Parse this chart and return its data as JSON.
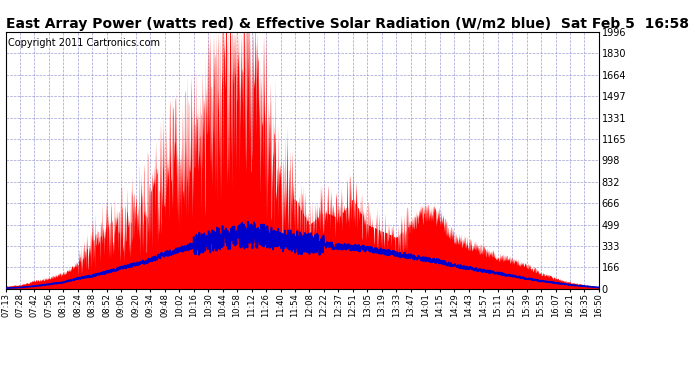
{
  "title": "East Array Power (watts red) & Effective Solar Radiation (W/m2 blue)  Sat Feb 5  16:58",
  "copyright": "Copyright 2011 Cartronics.com",
  "ylim": [
    0.0,
    1996.4
  ],
  "yticks": [
    0.0,
    166.4,
    332.7,
    499.1,
    665.5,
    831.8,
    998.2,
    1164.6,
    1330.9,
    1497.3,
    1663.7,
    1830.0,
    1996.4
  ],
  "background_color": "#ffffff",
  "grid_color": "#aaaaff",
  "fill_color": "#ff0000",
  "line_color": "#0000cc",
  "title_fontsize": 10,
  "copyright_fontsize": 7,
  "xtick_labels": [
    "07:13",
    "07:28",
    "07:42",
    "07:56",
    "08:10",
    "08:24",
    "08:38",
    "08:52",
    "09:06",
    "09:20",
    "09:34",
    "09:48",
    "10:02",
    "10:16",
    "10:30",
    "10:44",
    "10:58",
    "11:12",
    "11:26",
    "11:40",
    "11:54",
    "12:08",
    "12:22",
    "12:37",
    "12:51",
    "13:05",
    "13:19",
    "13:33",
    "13:47",
    "14:01",
    "14:15",
    "14:29",
    "14:43",
    "14:57",
    "15:11",
    "15:25",
    "15:39",
    "15:53",
    "16:07",
    "16:21",
    "16:35",
    "16:50"
  ],
  "power_data": [
    20,
    30,
    60,
    80,
    120,
    200,
    350,
    450,
    500,
    600,
    700,
    900,
    1000,
    1100,
    1400,
    1700,
    1996,
    1800,
    1300,
    900,
    700,
    500,
    600,
    550,
    700,
    500,
    450,
    400,
    500,
    600,
    550,
    400,
    350,
    300,
    250,
    220,
    180,
    120,
    80,
    50,
    30,
    15
  ],
  "solar_data": [
    5,
    10,
    20,
    35,
    50,
    80,
    100,
    130,
    160,
    190,
    220,
    270,
    300,
    340,
    370,
    390,
    410,
    420,
    400,
    380,
    360,
    350,
    340,
    330,
    320,
    310,
    290,
    270,
    250,
    230,
    210,
    180,
    160,
    140,
    120,
    100,
    80,
    60,
    45,
    30,
    20,
    10
  ]
}
